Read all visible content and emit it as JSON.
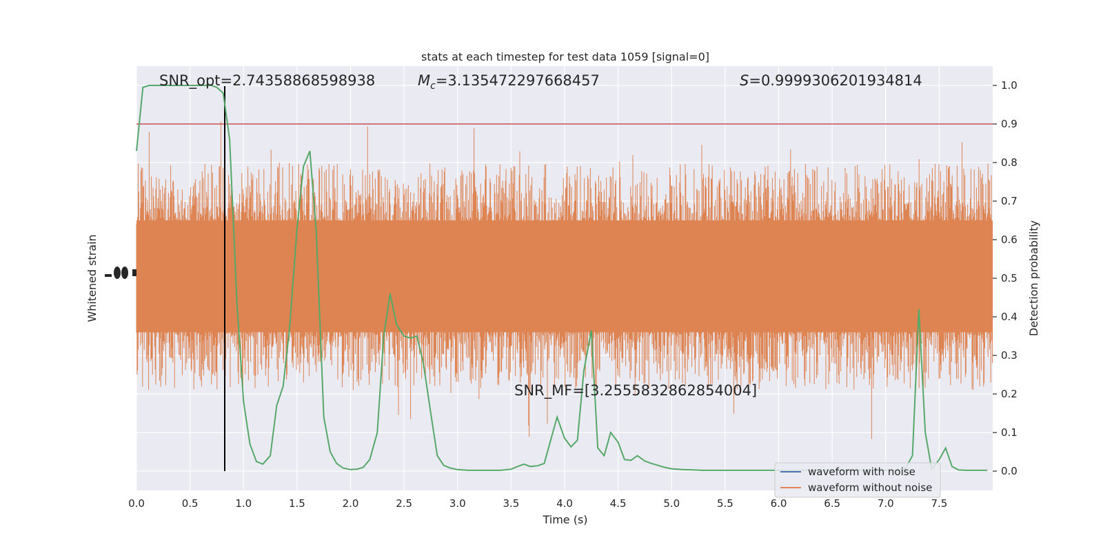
{
  "chart_data": {
    "type": "line",
    "title": "stats at each timestep for test data 1059 [signal=0]",
    "xlabel": "Time (s)",
    "ylabel_left": "Whitened strain",
    "ylabel_right": "Detection probability",
    "xlim": [
      0,
      8
    ],
    "ylim_right": [
      -0.05,
      1.05
    ],
    "x_ticks": [
      "0.0",
      "0.5",
      "1.0",
      "1.5",
      "2.0",
      "2.5",
      "3.0",
      "3.5",
      "4.0",
      "4.5",
      "5.0",
      "5.5",
      "6.0",
      "6.5",
      "7.0",
      "7.5"
    ],
    "y_ticks_right": [
      "0.0",
      "0.1",
      "0.2",
      "0.3",
      "0.4",
      "0.5",
      "0.6",
      "0.7",
      "0.8",
      "0.9",
      "1.0"
    ],
    "grid": true,
    "threshold": 0.9,
    "vline_x": 0.81,
    "annotations": {
      "snr_opt": "SNR_opt=2.74358868598938",
      "mc_symbol": "M",
      "mc_sub": "c",
      "mc_value": "=3.135472297668457",
      "s_symbol": "S",
      "s_value": "=0.9999306201934814",
      "snr_mf": "SNR_MF=[3.2555832862854004]"
    },
    "legend": {
      "placement": "lower-right",
      "entries": [
        {
          "label": "waveform with noise",
          "color": "#4c72b0"
        },
        {
          "label": "waveform without noise",
          "color": "#dd8452"
        }
      ]
    },
    "colors": {
      "noise": "#dd8452",
      "probability": "#55a868",
      "threshold": "#c44e52",
      "vline": "#000000",
      "background": "#eaeaf2"
    },
    "series": [
      {
        "name": "Detection probability",
        "x": [
          0,
          0.06,
          0.12,
          0.2,
          0.3,
          0.4,
          0.5,
          0.6,
          0.7,
          0.75,
          0.81,
          0.87,
          0.94,
          1.0,
          1.06,
          1.12,
          1.18,
          1.25,
          1.31,
          1.37,
          1.43,
          1.5,
          1.56,
          1.62,
          1.68,
          1.75,
          1.81,
          1.87,
          1.93,
          2.0,
          2.06,
          2.12,
          2.18,
          2.25,
          2.31,
          2.37,
          2.43,
          2.5,
          2.56,
          2.62,
          2.68,
          2.75,
          2.81,
          2.87,
          2.93,
          3.0,
          3.1,
          3.2,
          3.3,
          3.4,
          3.5,
          3.56,
          3.62,
          3.68,
          3.75,
          3.81,
          3.87,
          3.93,
          4.0,
          4.06,
          4.12,
          4.18,
          4.25,
          4.31,
          4.37,
          4.43,
          4.5,
          4.56,
          4.62,
          4.68,
          4.75,
          4.81,
          4.87,
          4.93,
          5.0,
          5.1,
          5.2,
          5.3,
          5.4,
          5.5,
          5.6,
          5.7,
          5.8,
          5.9,
          6.0,
          6.1,
          6.2,
          6.3,
          6.4,
          6.5,
          6.6,
          6.7,
          6.8,
          6.9,
          7.0,
          7.06,
          7.12,
          7.18,
          7.25,
          7.31,
          7.37,
          7.43,
          7.5,
          7.56,
          7.62,
          7.68,
          7.75,
          7.81,
          7.87,
          7.95
        ],
        "y": [
          0.83,
          0.995,
          1.0,
          1.0,
          1.0,
          1.0,
          1.0,
          1.0,
          1.0,
          0.995,
          0.98,
          0.86,
          0.43,
          0.18,
          0.07,
          0.025,
          0.018,
          0.04,
          0.17,
          0.22,
          0.37,
          0.63,
          0.79,
          0.83,
          0.62,
          0.14,
          0.05,
          0.02,
          0.008,
          0.004,
          0.005,
          0.01,
          0.03,
          0.1,
          0.35,
          0.46,
          0.38,
          0.35,
          0.345,
          0.35,
          0.28,
          0.15,
          0.04,
          0.015,
          0.008,
          0.004,
          0.002,
          0.002,
          0.002,
          0.002,
          0.005,
          0.012,
          0.018,
          0.012,
          0.014,
          0.02,
          0.08,
          0.14,
          0.085,
          0.063,
          0.08,
          0.26,
          0.365,
          0.06,
          0.04,
          0.1,
          0.075,
          0.03,
          0.028,
          0.04,
          0.026,
          0.02,
          0.015,
          0.01,
          0.006,
          0.004,
          0.003,
          0.002,
          0.002,
          0.002,
          0.002,
          0.002,
          0.002,
          0.002,
          0.002,
          0.002,
          0.002,
          0.002,
          0.002,
          0.002,
          0.002,
          0.002,
          0.002,
          0.002,
          0.002,
          0.002,
          0.002,
          0.005,
          0.04,
          0.42,
          0.1,
          0.005,
          0.03,
          0.06,
          0.012,
          0.003,
          0.002,
          0.002,
          0.002,
          0.002
        ]
      }
    ]
  }
}
